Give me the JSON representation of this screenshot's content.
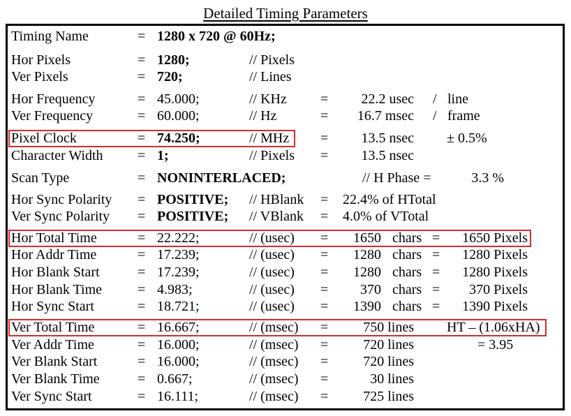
{
  "title": "Detailed Timing Parameters",
  "highlight_color": "#d62a2a",
  "rows": [
    {
      "name": "Timing Name",
      "eq": "=",
      "value": "1280 x 720 @ 60Hz;",
      "value_bold": true
    },
    {
      "name": "Hor Pixels",
      "eq": "=",
      "value": "1280;",
      "value_bold": true,
      "unit": "// Pixels"
    },
    {
      "name": "Ver Pixels",
      "eq": "=",
      "value": "720;",
      "value_bold": true,
      "unit": "// Lines"
    },
    {
      "name": "Hor Frequency",
      "eq": "=",
      "value": "45.000;",
      "unit": "// KHz",
      "eq2": "=",
      "c4": "22.2 usec",
      "c5": "/",
      "c6": "line"
    },
    {
      "name": "Ver Frequency",
      "eq": "=",
      "value": "60.000;",
      "unit": "// Hz",
      "eq2": "=",
      "c4": "16.7 msec",
      "c5": "/",
      "c6": "frame"
    },
    {
      "name": "Pixel Clock",
      "eq": "=",
      "value": "74.250;",
      "value_bold": true,
      "unit": "// MHz",
      "eq2": "=",
      "c4": "13.5 nsec",
      "c6": "± 0.5%"
    },
    {
      "name": "Character Width",
      "eq": "=",
      "value": "1;",
      "value_bold": true,
      "unit": "// Pixels",
      "eq2": "=",
      "c4": "13.5 nsec"
    },
    {
      "name": "Scan Type",
      "eq": "=",
      "value": "NONINTERLACED;",
      "value_bold": true,
      "c4": "// H Phase  =",
      "c6": "3.3 %"
    },
    {
      "name": "Hor Sync Polarity",
      "eq": "=",
      "value": "POSITIVE;",
      "value_bold": true,
      "unit": "// HBlank",
      "eq2": "=",
      "c4": "22.4% of HTotal"
    },
    {
      "name": "Ver Sync Polarity",
      "eq": "=",
      "value": "POSITIVE;",
      "value_bold": true,
      "unit": "// VBlank",
      "eq2": "=",
      "c4": "4.0% of VTotal"
    },
    {
      "name": "Hor Total Time",
      "eq": "=",
      "value": "22.222;",
      "unit": "// (usec)",
      "eq2": "=",
      "c4": "1650",
      "c5": "chars",
      "c5eq": "=",
      "c6": "1650 Pixels"
    },
    {
      "name": "Hor Addr Time",
      "eq": "=",
      "value": "17.239;",
      "unit": "// (usec)",
      "eq2": "=",
      "c4": "1280",
      "c5": "chars",
      "c5eq": "=",
      "c6": "1280 Pixels"
    },
    {
      "name": "Hor Blank Start",
      "eq": "=",
      "value": "17.239;",
      "unit": "// (usec)",
      "eq2": "=",
      "c4": "1280",
      "c5": "chars",
      "c5eq": "=",
      "c6": "1280 Pixels"
    },
    {
      "name": "Hor Blank Time",
      "eq": "=",
      "value": "4.983;",
      "unit": "// (usec)",
      "eq2": "=",
      "c4": "370",
      "c5": "chars",
      "c5eq": "=",
      "c6": "370 Pixels"
    },
    {
      "name": "Hor Sync Start",
      "eq": "=",
      "value": "18.721;",
      "unit": "// (usec)",
      "eq2": "=",
      "c4": "1390",
      "c5": "chars",
      "c5eq": "=",
      "c6": "1390 Pixels"
    },
    {
      "name": "Ver Total Time",
      "eq": "=",
      "value": "16.667;",
      "unit": "// (msec)",
      "eq2": "=",
      "c4": "750 lines",
      "c6": "HT – (1.06xHA)"
    },
    {
      "name": "Ver Addr Time",
      "eq": "=",
      "value": "16.000;",
      "unit": "// (msec)",
      "eq2": "=",
      "c4": "720 lines",
      "c6": "= 3.95"
    },
    {
      "name": "Ver Blank Start",
      "eq": "=",
      "value": "16.000;",
      "unit": "// (msec)",
      "eq2": "=",
      "c4": "720 lines"
    },
    {
      "name": "Ver Blank Time",
      "eq": "=",
      "value": "0.667;",
      "unit": "// (msec)",
      "eq2": "=",
      "c4": "30 lines"
    },
    {
      "name": "Ver Sync Start",
      "eq": "=",
      "value": "16.111;",
      "unit": "// (msec)",
      "eq2": "=",
      "c4": "725 lines"
    }
  ]
}
